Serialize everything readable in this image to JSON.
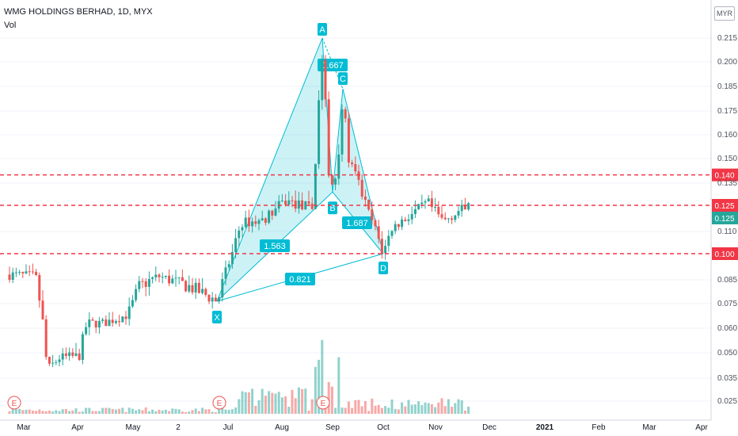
{
  "header": {
    "title": "WMG HOLDINGS BERHAD, 1D, MYX",
    "volume_label": "Vol",
    "currency": "MYR"
  },
  "chart_data": {
    "type": "candlestick",
    "y_ticks": [
      "0.215",
      "0.200",
      "0.185",
      "0.175",
      "0.160",
      "0.150",
      "0.135",
      "0.110",
      "0.085",
      "0.075",
      "0.060",
      "0.050",
      "0.035",
      "0.025"
    ],
    "x_ticks": [
      "Mar",
      "Apr",
      "May",
      "2",
      "Jul",
      "Aug",
      "Sep",
      "Oct",
      "Nov",
      "Dec",
      "2021",
      "Feb",
      "Mar",
      "Apr"
    ],
    "price_lines": [
      {
        "value": "0.140",
        "color": "#f23645"
      },
      {
        "value": "0.125",
        "color": "#f23645"
      },
      {
        "value": "0.100",
        "color": "#f23645"
      }
    ],
    "last_price": {
      "value": "0.125",
      "color": "#26a69a"
    },
    "harmonic_pattern": {
      "points": [
        {
          "label": "X",
          "price": 0.076
        },
        {
          "label": "A",
          "price": 0.215
        },
        {
          "label": "B",
          "price": 0.131
        },
        {
          "label": "C",
          "price": 0.184
        },
        {
          "label": "D",
          "price": 0.1
        }
      ],
      "ratios": [
        "0.667",
        "1.563",
        "1.687",
        "0.821"
      ],
      "color": "#00bcd4"
    },
    "earnings_markers": [
      "E",
      "E",
      "E"
    ],
    "colors": {
      "up": "#26a69a",
      "down": "#ef5350",
      "grid": "#f0f3fa"
    }
  }
}
